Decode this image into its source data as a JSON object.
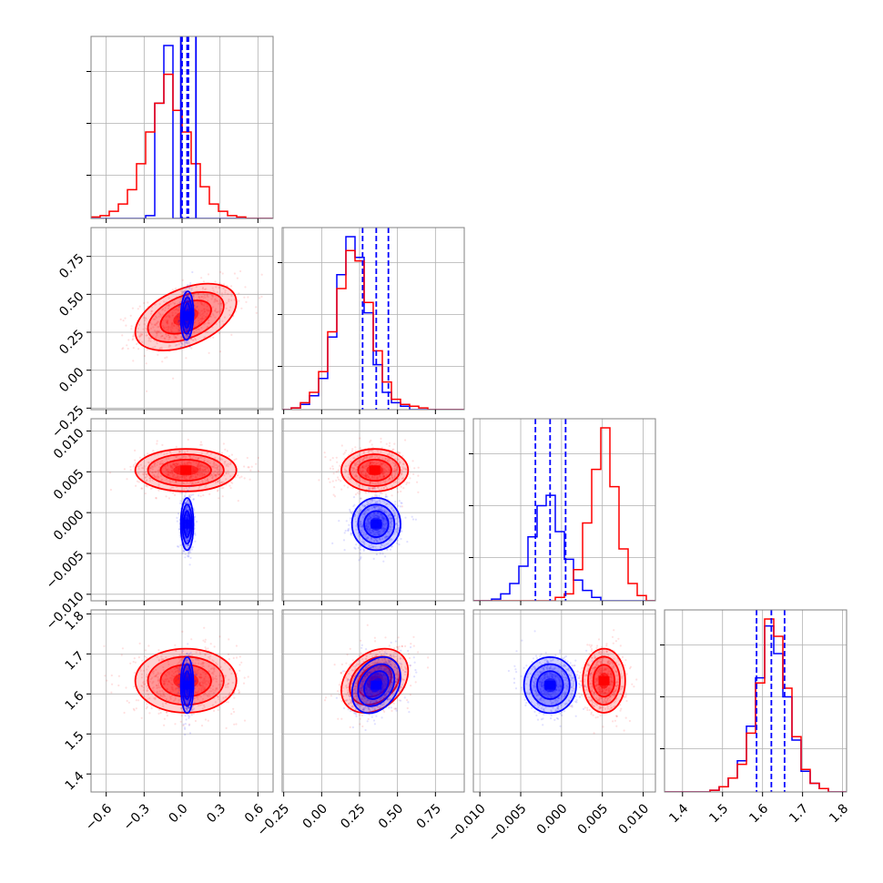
{
  "chart_data": {
    "type": "corner",
    "colors": {
      "blue": "#0000ff",
      "red": "#ff0000",
      "grid": "#b0b0b0",
      "frame": "#808080"
    },
    "series": [
      {
        "color": "#0000ff"
      },
      {
        "color": "#ff0000"
      }
    ],
    "parameters": [
      {
        "range": [
          -0.72,
          0.72
        ],
        "ticks": [
          "−0.6",
          "−0.3",
          "0.0",
          "0.3",
          "0.6"
        ],
        "tick_values": [
          -0.6,
          -0.3,
          0.0,
          0.3,
          0.6
        ]
      },
      {
        "range": [
          -0.26,
          0.94
        ],
        "ticks": [
          "−0.25",
          "0.00",
          "0.25",
          "0.50",
          "0.75"
        ],
        "tick_values": [
          -0.25,
          0.0,
          0.25,
          0.5,
          0.75
        ]
      },
      {
        "range": [
          -0.0108,
          0.0115
        ],
        "ticks": [
          "−0.010",
          "−0.005",
          "0.000",
          "0.005",
          "0.010"
        ],
        "tick_values": [
          -0.01,
          -0.005,
          0.0,
          0.005,
          0.01
        ]
      },
      {
        "range": [
          1.355,
          1.81
        ],
        "ticks": [
          "1.4",
          "1.5",
          "1.6",
          "1.7",
          "1.8"
        ],
        "tick_values": [
          1.4,
          1.5,
          1.6,
          1.7,
          1.8
        ]
      }
    ],
    "grid": true,
    "quantile_lines": {
      "blue": [
        [
          0.0,
          0.04,
          0.05
        ],
        [
          0.27,
          0.36,
          0.44
        ],
        [
          -0.0032,
          -0.0014,
          0.0005
        ],
        [
          1.585,
          1.622,
          1.655
        ]
      ]
    },
    "samples": {
      "blue": {
        "mean": [
          0.04,
          0.36,
          -0.0014,
          1.622
        ],
        "sd": [
          0.025,
          0.08,
          0.0016,
          0.035
        ],
        "corr": {
          "0-1": 0.1,
          "1-3": 0.3,
          "0-3": 0.0,
          "2-3": 0.0,
          "0-2": 0.0,
          "1-2": 0.0
        }
      },
      "red": {
        "mean": [
          0.03,
          0.35,
          0.0052,
          1.633
        ],
        "sd": [
          0.2,
          0.11,
          0.0013,
          0.04
        ],
        "corr": {
          "0-1": 0.45,
          "1-3": 0.3,
          "0-3": 0.0,
          "2-3": 0.0,
          "0-2": 0.0,
          "1-2": 0.0
        }
      }
    },
    "histograms_1d": [
      {
        "blue": [
          0,
          0,
          0,
          0,
          0,
          0,
          2,
          80,
          120,
          0,
          0,
          0,
          0,
          0,
          0,
          0,
          0,
          0,
          0,
          0
        ],
        "red": [
          1,
          2,
          5,
          10,
          20,
          38,
          60,
          80,
          100,
          75,
          60,
          38,
          22,
          10,
          5,
          2,
          1,
          0,
          0,
          0
        ]
      },
      {
        "blue": [
          0,
          1,
          3,
          8,
          18,
          42,
          78,
          100,
          88,
          56,
          26,
          10,
          4,
          2,
          0,
          0,
          0,
          0,
          0,
          0
        ],
        "red": [
          0,
          1,
          4,
          10,
          22,
          45,
          70,
          92,
          86,
          62,
          34,
          16,
          6,
          3,
          2,
          1,
          0,
          0,
          0,
          0
        ]
      },
      {
        "blue": [
          0,
          0,
          1,
          4,
          10,
          20,
          37,
          55,
          61,
          40,
          24,
          12,
          6,
          2,
          0,
          0,
          0,
          0,
          0,
          0
        ],
        "red": [
          0,
          0,
          0,
          0,
          0,
          0,
          0,
          0,
          0,
          2,
          4,
          18,
          45,
          76,
          100,
          66,
          30,
          10,
          3,
          0
        ]
      },
      {
        "blue": [
          0,
          0,
          0,
          0,
          0,
          1,
          3,
          8,
          18,
          38,
          66,
          96,
          80,
          55,
          30,
          12,
          5,
          2,
          0,
          0
        ],
        "red": [
          0,
          0,
          0,
          0,
          0,
          1,
          3,
          8,
          16,
          34,
          63,
          100,
          90,
          60,
          32,
          13,
          5,
          2,
          0,
          0
        ]
      }
    ]
  }
}
